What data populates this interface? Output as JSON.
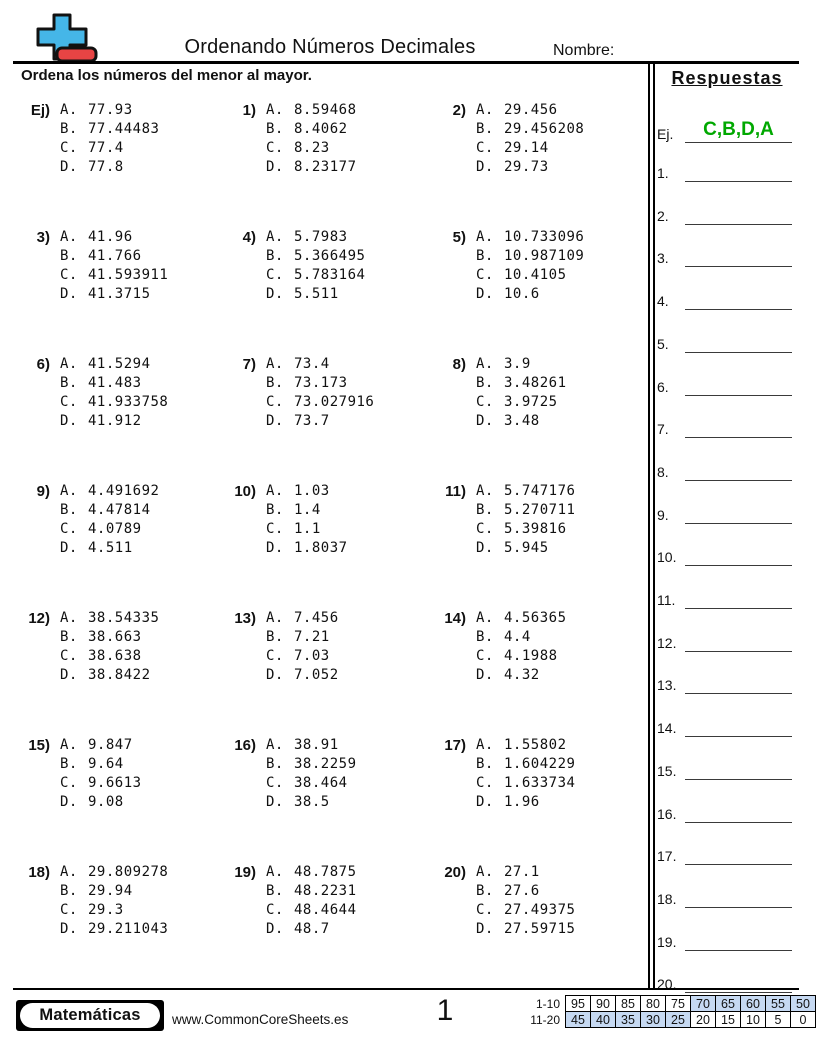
{
  "header": {
    "title": "Ordenando Números Decimales",
    "name_label": "Nombre:",
    "instruction": "Ordena los números del menor al mayor."
  },
  "answers_panel": {
    "title": "Respuestas",
    "example_label": "Ej.",
    "example_answer": "C,B,D,A",
    "row_labels": [
      "1.",
      "2.",
      "3.",
      "4.",
      "5.",
      "6.",
      "7.",
      "8.",
      "9.",
      "10.",
      "11.",
      "12.",
      "13.",
      "14.",
      "15.",
      "16.",
      "17.",
      "18.",
      "19.",
      "20."
    ]
  },
  "option_letters": [
    "A.",
    "B.",
    "C.",
    "D."
  ],
  "problems": [
    {
      "label": "Ej)",
      "options": [
        "77.93",
        "77.44483",
        "77.4",
        "77.8"
      ]
    },
    {
      "label": "1)",
      "options": [
        "8.59468",
        "8.4062",
        "8.23",
        "8.23177"
      ]
    },
    {
      "label": "2)",
      "options": [
        "29.456",
        "29.456208",
        "29.14",
        "29.73"
      ]
    },
    {
      "label": "3)",
      "options": [
        "41.96",
        "41.766",
        "41.593911",
        "41.3715"
      ]
    },
    {
      "label": "4)",
      "options": [
        "5.7983",
        "5.366495",
        "5.783164",
        "5.511"
      ]
    },
    {
      "label": "5)",
      "options": [
        "10.733096",
        "10.987109",
        "10.4105",
        "10.6"
      ]
    },
    {
      "label": "6)",
      "options": [
        "41.5294",
        "41.483",
        "41.933758",
        "41.912"
      ]
    },
    {
      "label": "7)",
      "options": [
        "73.4",
        "73.173",
        "73.027916",
        "73.7"
      ]
    },
    {
      "label": "8)",
      "options": [
        "3.9",
        "3.48261",
        "3.9725",
        "3.48"
      ]
    },
    {
      "label": "9)",
      "options": [
        "4.491692",
        "4.47814",
        "4.0789",
        "4.511"
      ]
    },
    {
      "label": "10)",
      "options": [
        "1.03",
        "1.4",
        "1.1",
        "1.8037"
      ]
    },
    {
      "label": "11)",
      "options": [
        "5.747176",
        "5.270711",
        "5.39816",
        "5.945"
      ]
    },
    {
      "label": "12)",
      "options": [
        "38.54335",
        "38.663",
        "38.638",
        "38.8422"
      ]
    },
    {
      "label": "13)",
      "options": [
        "7.456",
        "7.21",
        "7.03",
        "7.052"
      ]
    },
    {
      "label": "14)",
      "options": [
        "4.56365",
        "4.4",
        "4.1988",
        "4.32"
      ]
    },
    {
      "label": "15)",
      "options": [
        "9.847",
        "9.64",
        "9.6613",
        "9.08"
      ]
    },
    {
      "label": "16)",
      "options": [
        "38.91",
        "38.2259",
        "38.464",
        "38.5"
      ]
    },
    {
      "label": "17)",
      "options": [
        "1.55802",
        "1.604229",
        "1.633734",
        "1.96"
      ]
    },
    {
      "label": "18)",
      "options": [
        "29.809278",
        "29.94",
        "29.3",
        "29.211043"
      ]
    },
    {
      "label": "19)",
      "options": [
        "48.7875",
        "48.2231",
        "48.4644",
        "48.7"
      ]
    },
    {
      "label": "20)",
      "options": [
        "27.1",
        "27.6",
        "27.49375",
        "27.59715"
      ]
    }
  ],
  "footer": {
    "brand": "Matemáticas",
    "website": "www.CommonCoreSheets.es",
    "page_number": "1",
    "score_table": {
      "rows": [
        {
          "label": "1-10",
          "cells": [
            {
              "v": "95"
            },
            {
              "v": "90"
            },
            {
              "v": "85"
            },
            {
              "v": "80"
            },
            {
              "v": "75"
            },
            {
              "v": "70",
              "hl": true
            },
            {
              "v": "65",
              "hl": true
            },
            {
              "v": "60",
              "hl": true
            },
            {
              "v": "55",
              "hl": true
            },
            {
              "v": "50",
              "hl": true
            }
          ]
        },
        {
          "label": "11-20",
          "cells": [
            {
              "v": "45",
              "hl": true
            },
            {
              "v": "40",
              "hl": true
            },
            {
              "v": "35",
              "hl": true
            },
            {
              "v": "30",
              "hl": true
            },
            {
              "v": "25",
              "hl": true
            },
            {
              "v": "20"
            },
            {
              "v": "15"
            },
            {
              "v": "10"
            },
            {
              "v": "5"
            },
            {
              "v": "0"
            }
          ]
        }
      ]
    }
  },
  "colors": {
    "answer_green": "#00a800",
    "highlight_blue": "#c6d9f2",
    "logo_blue": "#45b6e8",
    "logo_red": "#e84444"
  }
}
